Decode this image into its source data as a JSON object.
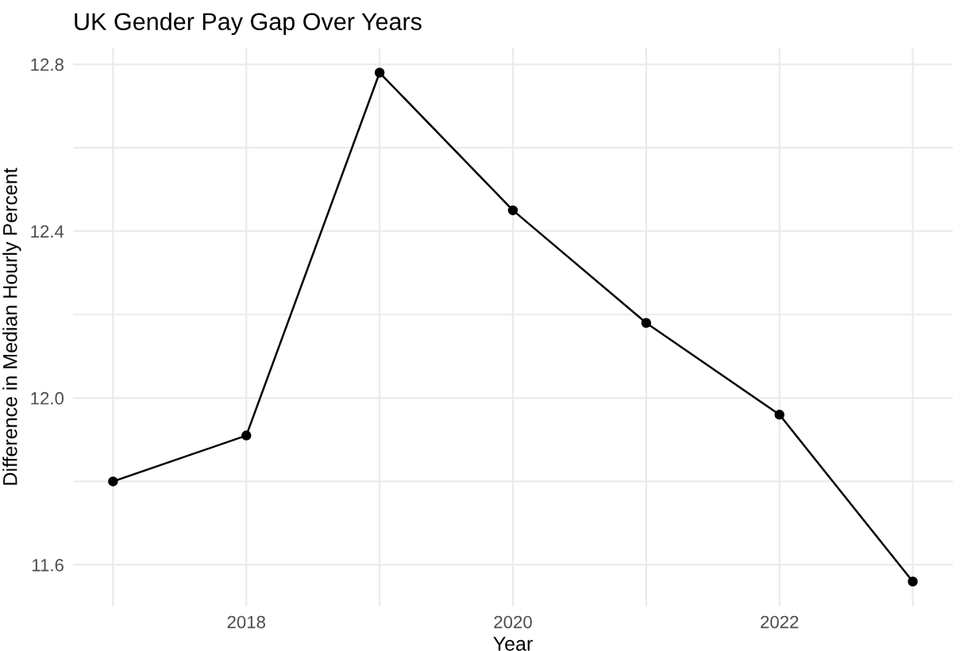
{
  "chart_data": {
    "type": "line",
    "title": "UK Gender Pay Gap Over Years",
    "xlabel": "Year",
    "ylabel": "Difference in Median Hourly Percent",
    "x": [
      2017,
      2018,
      2019,
      2020,
      2021,
      2022,
      2023
    ],
    "series": [
      {
        "color": "#000000",
        "values": [
          11.8,
          11.91,
          12.78,
          12.45,
          12.18,
          11.96,
          11.56
        ]
      }
    ],
    "xlim": [
      2016.7,
      2023.3
    ],
    "xticks": [
      {
        "value": 2017,
        "label": null
      },
      2018,
      {
        "value": 2019,
        "label": null
      },
      2020,
      {
        "value": 2021,
        "label": null
      },
      2022,
      {
        "value": 2023,
        "label": null
      }
    ],
    "ylim": [
      11.5,
      12.84
    ],
    "yticks": [
      11.6,
      {
        "value": 11.8,
        "label": null
      },
      {
        "value": 12.0,
        "label": "12.0"
      },
      {
        "value": 12.2,
        "label": null
      },
      12.4,
      {
        "value": 12.6,
        "label": null
      },
      12.8
    ],
    "grid": true,
    "marker": "circle",
    "line_style": "solid"
  }
}
